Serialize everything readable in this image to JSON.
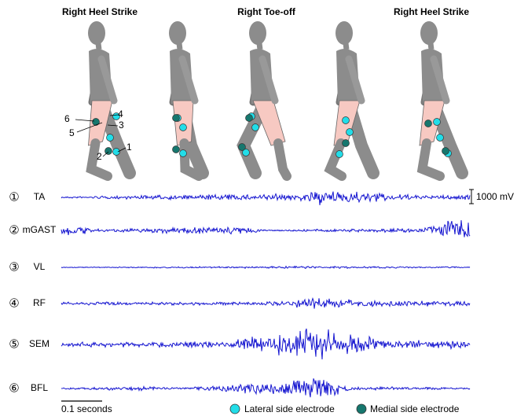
{
  "phases": [
    "Right Heel Strike",
    "Right Toe-off",
    "Right Heel Strike"
  ],
  "electrode_labels": [
    "1",
    "2",
    "3",
    "4",
    "5",
    "6"
  ],
  "channels": [
    {
      "number": "①",
      "name": "TA"
    },
    {
      "number": "②",
      "name": "mGAST"
    },
    {
      "number": "③",
      "name": "VL"
    },
    {
      "number": "④",
      "name": "RF"
    },
    {
      "number": "⑤",
      "name": "SEM"
    },
    {
      "number": "⑥",
      "name": "BFL"
    }
  ],
  "amplitude_scale": "1000 mV",
  "time_scale": "0.1 seconds",
  "legend": [
    "Lateral side electrode",
    "Medial side electrode"
  ]
}
